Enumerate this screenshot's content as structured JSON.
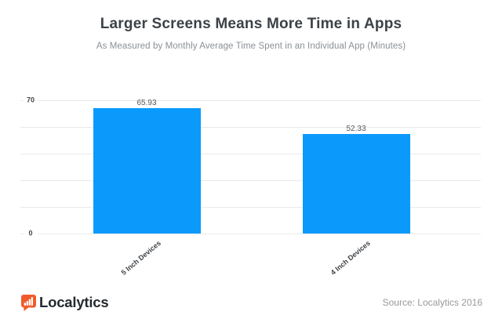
{
  "header": {
    "title": "Larger Screens Means More Time in Apps",
    "subtitle": "As Measured by Monthly Average Time Spent in an Individual App (Minutes)"
  },
  "chart_data": {
    "type": "bar",
    "categories": [
      "5 Inch Devices",
      "4 Inch Devices"
    ],
    "values": [
      65.93,
      52.33
    ],
    "value_labels": [
      "65.93",
      "52.33"
    ],
    "title": "Larger Screens Means More Time in Apps",
    "subtitle": "As Measured by Monthly Average Time Spent in an Individual App (Minutes)",
    "xlabel": "",
    "ylabel": "",
    "ylim": [
      0,
      70
    ],
    "yticks": [
      {
        "label": "70",
        "value": 70
      },
      {
        "label": "0",
        "value": 0
      }
    ],
    "gridline_values": [
      70,
      56,
      42,
      28,
      14,
      0
    ],
    "grid": true,
    "legend": "none",
    "bar_color": "#0b9afc",
    "gridline_color": "#e9eaea",
    "value_label_color": "#55595d",
    "tick_label_color": "#3e4347",
    "category_label_color": "#3e4347"
  },
  "footer": {
    "brand": "Localytics",
    "brand_icon": "bar-chart-speech-bubble-icon",
    "brand_color": "#f15b2b",
    "source": "Source: Localytics 2016"
  }
}
